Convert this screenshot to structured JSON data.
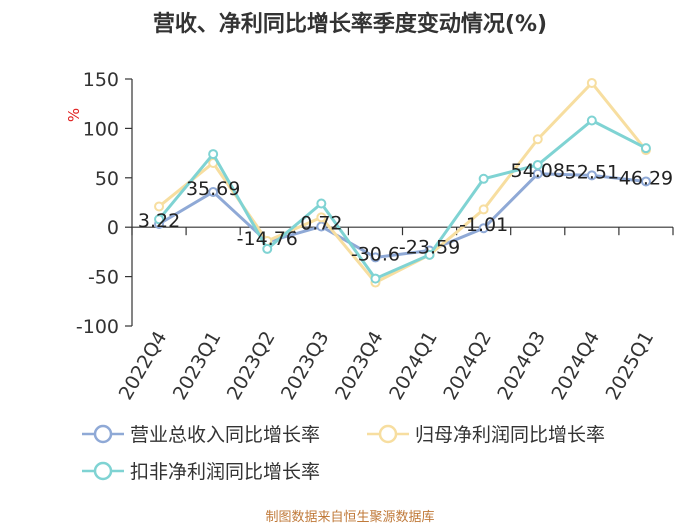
{
  "chart_data": {
    "type": "line",
    "title": "营收、净利同比增长率季度变动情况(%)",
    "ylabel": "%",
    "ylim": [
      -100,
      150
    ],
    "yticks": [
      150,
      100,
      50,
      0,
      -50,
      -100
    ],
    "categories": [
      "2022Q4",
      "2023Q1",
      "2023Q2",
      "2023Q3",
      "2023Q4",
      "2024Q1",
      "2024Q2",
      "2024Q3",
      "2024Q4",
      "2025Q1"
    ],
    "series": [
      {
        "name": "营业总收入同比增长率",
        "color": "#8fa9d6",
        "values": [
          3.22,
          35.69,
          -14.76,
          0.72,
          -30.6,
          -23.59,
          -1.01,
          54.08,
          52.51,
          46.29
        ],
        "labels": [
          "3.22",
          "35.69",
          "-14.76",
          "0.72",
          "-30.6",
          "-23.59",
          "-1.01",
          "54.08",
          "52.51",
          "46.29"
        ]
      },
      {
        "name": "归母净利润同比增长率",
        "color": "#f7dea0",
        "values": [
          21,
          65,
          -14,
          10,
          -56,
          -28,
          18,
          89,
          146,
          78
        ]
      },
      {
        "name": "扣非净利润同比增长率",
        "color": "#7fd3d3",
        "values": [
          8,
          74,
          -22,
          24,
          -52,
          -28,
          49,
          63,
          108,
          80
        ]
      }
    ],
    "grid": false,
    "legend_position": "bottom"
  },
  "footer": "制图数据来自恒生聚源数据库"
}
